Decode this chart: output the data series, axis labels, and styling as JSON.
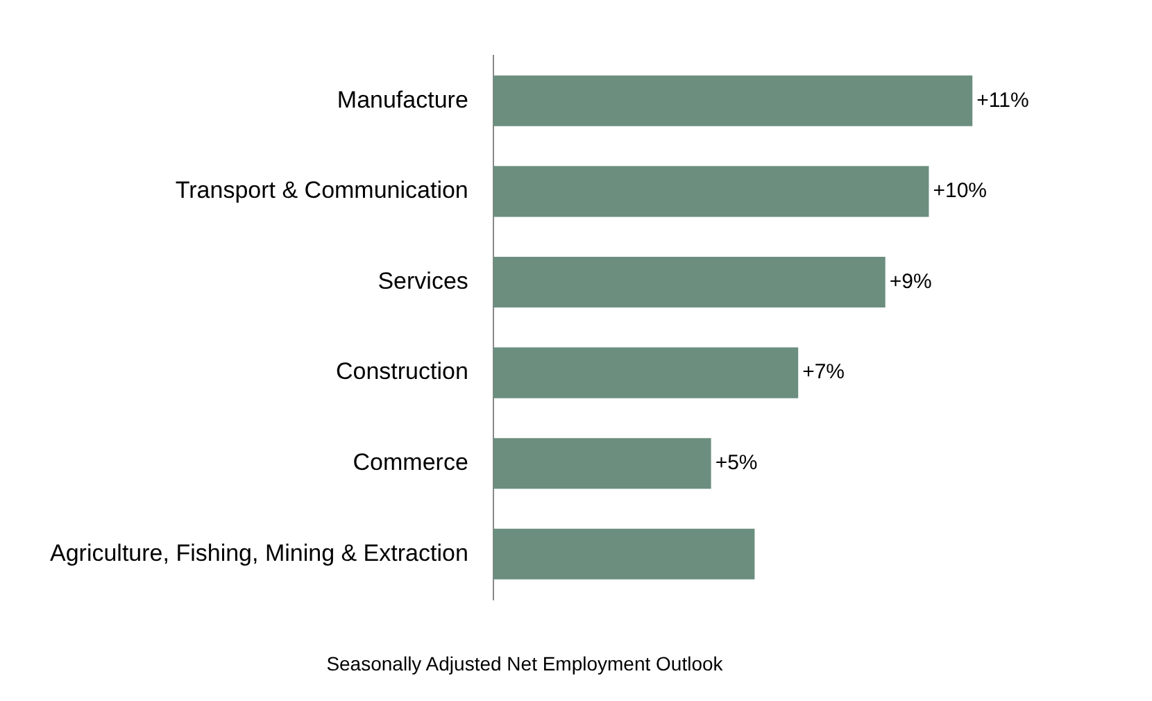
{
  "chart_data": {
    "type": "bar",
    "orientation": "horizontal",
    "xlabel": "Seasonally Adjusted Net Employment Outlook",
    "categories": [
      "Manufacture",
      "Transport & Communication",
      "Services",
      "Construction",
      "Commerce",
      "Agriculture, Fishing, Mining & Extraction"
    ],
    "values": [
      11,
      10,
      9,
      7,
      5,
      6
    ],
    "value_labels": [
      "+11%",
      "+10%",
      "+9%",
      "+7%",
      "+5%",
      null
    ],
    "color": "#6b8e7f",
    "grid": false,
    "legend": false
  }
}
